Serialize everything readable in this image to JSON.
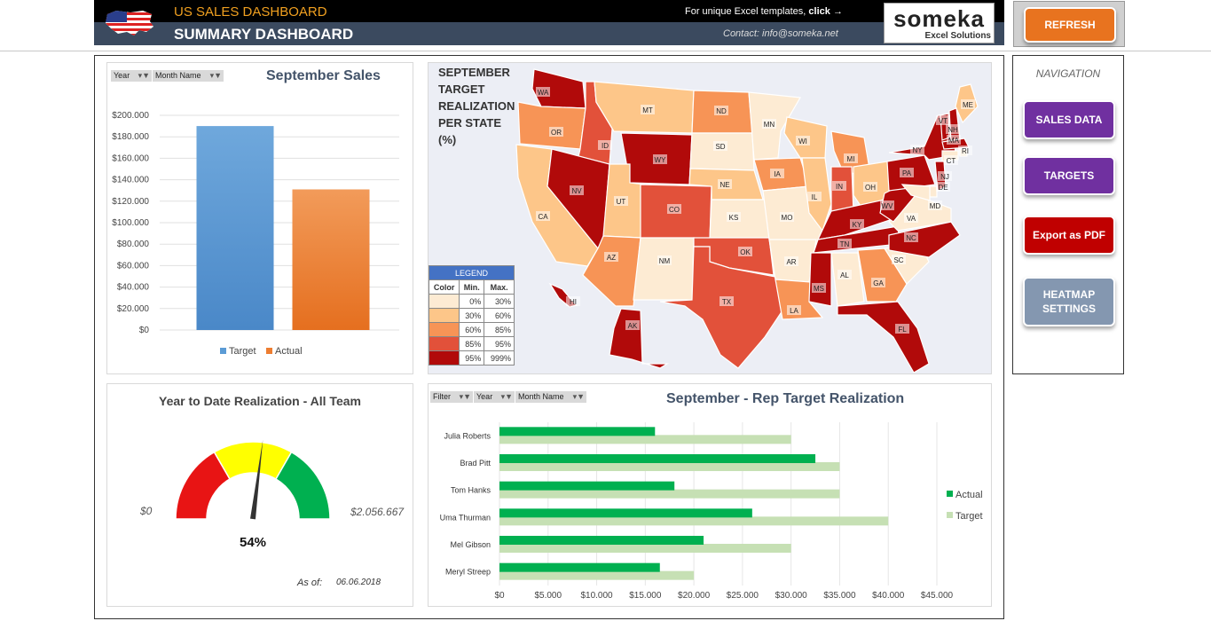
{
  "header": {
    "app_title": "US SALES DASHBOARD",
    "page_title": "SUMMARY DASHBOARD",
    "templates_text": "For unique Excel templates,",
    "templates_link": "click →",
    "contact": "Contact: info@someka.net",
    "logo_word": "someka",
    "logo_sub": "Excel Solutions",
    "refresh_label": "REFRESH"
  },
  "navigation": {
    "title": "NAVIGATION",
    "buttons": [
      {
        "label": "SALES DATA",
        "color": "#7030a0"
      },
      {
        "label": "TARGETS",
        "color": "#7030a0"
      },
      {
        "label": "Export as PDF",
        "color": "#c00000"
      },
      {
        "label": "HEATMAP\nSETTINGS",
        "color": "#8497b0"
      }
    ]
  },
  "sales_panel": {
    "slicers": [
      "Year",
      "Month Name"
    ]
  },
  "map_panel": {
    "title": [
      "SEPTEMBER",
      "TARGET",
      "REALIZATION",
      "PER STATE",
      "(%)"
    ],
    "legend": {
      "title": "LEGEND",
      "headers": [
        "Color",
        "Min.",
        "Max."
      ],
      "rows": [
        {
          "color": "#fdebd3",
          "min": "0%",
          "max": "30%"
        },
        {
          "color": "#fdc689",
          "min": "30%",
          "max": "60%"
        },
        {
          "color": "#f79456",
          "min": "60%",
          "max": "85%"
        },
        {
          "color": "#e2513a",
          "min": "85%",
          "max": "95%"
        },
        {
          "color": "#b10a0a",
          "min": "95%",
          "max": "999%"
        }
      ]
    },
    "states": [
      {
        "abbr": "WA",
        "level": 5
      },
      {
        "abbr": "OR",
        "level": 3
      },
      {
        "abbr": "CA",
        "level": 2
      },
      {
        "abbr": "ID",
        "level": 4
      },
      {
        "abbr": "NV",
        "level": 5
      },
      {
        "abbr": "MT",
        "level": 2
      },
      {
        "abbr": "WY",
        "level": 5
      },
      {
        "abbr": "UT",
        "level": 2
      },
      {
        "abbr": "AZ",
        "level": 3
      },
      {
        "abbr": "CO",
        "level": 4
      },
      {
        "abbr": "NM",
        "level": 1
      },
      {
        "abbr": "ND",
        "level": 3
      },
      {
        "abbr": "SD",
        "level": 1
      },
      {
        "abbr": "NE",
        "level": 2
      },
      {
        "abbr": "KS",
        "level": 1
      },
      {
        "abbr": "OK",
        "level": 4
      },
      {
        "abbr": "TX",
        "level": 4
      },
      {
        "abbr": "MN",
        "level": 1
      },
      {
        "abbr": "IA",
        "level": 3
      },
      {
        "abbr": "MO",
        "level": 1
      },
      {
        "abbr": "AR",
        "level": 1
      },
      {
        "abbr": "LA",
        "level": 3
      },
      {
        "abbr": "WI",
        "level": 2
      },
      {
        "abbr": "IL",
        "level": 2
      },
      {
        "abbr": "MI",
        "level": 3
      },
      {
        "abbr": "IN",
        "level": 4
      },
      {
        "abbr": "OH",
        "level": 2
      },
      {
        "abbr": "KY",
        "level": 5
      },
      {
        "abbr": "TN",
        "level": 5
      },
      {
        "abbr": "MS",
        "level": 5
      },
      {
        "abbr": "AL",
        "level": 1
      },
      {
        "abbr": "GA",
        "level": 3
      },
      {
        "abbr": "FL",
        "level": 5
      },
      {
        "abbr": "SC",
        "level": 1
      },
      {
        "abbr": "NC",
        "level": 5
      },
      {
        "abbr": "VA",
        "level": 1
      },
      {
        "abbr": "WV",
        "level": 5
      },
      {
        "abbr": "PA",
        "level": 5
      },
      {
        "abbr": "NY",
        "level": 5
      },
      {
        "abbr": "ME",
        "level": 2
      },
      {
        "abbr": "VT",
        "level": 5
      },
      {
        "abbr": "NH",
        "level": 5
      },
      {
        "abbr": "MA",
        "level": 5
      },
      {
        "abbr": "RI",
        "level": 1
      },
      {
        "abbr": "CT",
        "level": 1
      },
      {
        "abbr": "NJ",
        "level": 5
      },
      {
        "abbr": "DE",
        "level": 1
      },
      {
        "abbr": "MD",
        "level": 1
      },
      {
        "abbr": "HI",
        "level": 5
      },
      {
        "abbr": "AK",
        "level": 5
      }
    ]
  },
  "gauge_panel": {
    "title": "Year to Date Realization - All Team",
    "min_label": "$0",
    "max_label": "$2.056.667",
    "value_label": "54%",
    "value": 0.54,
    "as_of_label": "As of:",
    "as_of_date": "06.06.2018",
    "zone_colors": [
      "#e81414",
      "#ffff00",
      "#00b050"
    ]
  },
  "rep_panel": {
    "slicers": [
      "Filter",
      "Year",
      "Month Name"
    ]
  },
  "chart_data": [
    {
      "type": "bar",
      "title": "September Sales",
      "categories": [
        ""
      ],
      "series": [
        {
          "name": "Target",
          "values": [
            190000
          ],
          "color": "#5b9bd5"
        },
        {
          "name": "Actual",
          "values": [
            131000
          ],
          "color": "#ed7d31"
        }
      ],
      "ylim": [
        0,
        200000
      ],
      "yticks": [
        "$0",
        "$20.000",
        "$40.000",
        "$60.000",
        "$80.000",
        "$100.000",
        "$120.000",
        "$140.000",
        "$160.000",
        "$180.000",
        "$200.000"
      ],
      "grid": true,
      "legend": "bottom"
    },
    {
      "type": "bar",
      "orientation": "horizontal",
      "title": "September - Rep Target Realization",
      "categories": [
        "Julia Roberts",
        "Brad Pitt",
        "Tom Hanks",
        "Uma Thurman",
        "Mel Gibson",
        "Meryl Streep"
      ],
      "series": [
        {
          "name": "Actual",
          "values": [
            16000,
            32500,
            18000,
            26000,
            21000,
            16500
          ],
          "color": "#00b050"
        },
        {
          "name": "Target",
          "values": [
            30000,
            35000,
            35000,
            40000,
            30000,
            20000
          ],
          "color": "#c6e0b4"
        }
      ],
      "xlim": [
        0,
        45000
      ],
      "xticks": [
        "$0",
        "$5.000",
        "$10.000",
        "$15.000",
        "$20.000",
        "$25.000",
        "$30.000",
        "$35.000",
        "$40.000",
        "$45.000"
      ],
      "grid": true,
      "legend": "right"
    }
  ]
}
